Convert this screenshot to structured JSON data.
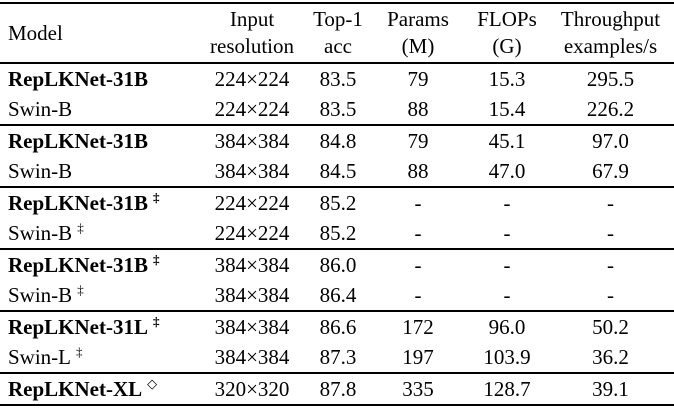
{
  "page": {
    "background": "#ffffff",
    "text_color": "#000000",
    "rule_color": "#000000"
  },
  "table": {
    "columns": [
      {
        "id": "model",
        "line1": "Model",
        "line2": ""
      },
      {
        "id": "resolution",
        "line1": "Input",
        "line2": "resolution"
      },
      {
        "id": "top1",
        "line1": "Top-1",
        "line2": "acc"
      },
      {
        "id": "params",
        "line1": "Params",
        "line2": "(M)"
      },
      {
        "id": "flops",
        "line1": "FLOPs",
        "line2": "(G)"
      },
      {
        "id": "throughput",
        "line1": "Throughput",
        "line2": "examples/s"
      }
    ],
    "rows": [
      {
        "model": "RepLKNet-31B",
        "sup": "",
        "bold": true,
        "resolution": "224×224",
        "top1": "83.5",
        "params": "79",
        "flops": "15.3",
        "throughput": "295.5",
        "group_start": false
      },
      {
        "model": "Swin-B",
        "sup": "",
        "bold": false,
        "resolution": "224×224",
        "top1": "83.5",
        "params": "88",
        "flops": "15.4",
        "throughput": "226.2",
        "group_start": false
      },
      {
        "model": "RepLKNet-31B",
        "sup": "",
        "bold": true,
        "resolution": "384×384",
        "top1": "84.8",
        "params": "79",
        "flops": "45.1",
        "throughput": "97.0",
        "group_start": true
      },
      {
        "model": "Swin-B",
        "sup": "",
        "bold": false,
        "resolution": "384×384",
        "top1": "84.5",
        "params": "88",
        "flops": "47.0",
        "throughput": "67.9",
        "group_start": false
      },
      {
        "model": "RepLKNet-31B",
        "sup": "‡",
        "bold": true,
        "resolution": "224×224",
        "top1": "85.2",
        "params": "-",
        "flops": "-",
        "throughput": "-",
        "group_start": true
      },
      {
        "model": "Swin-B",
        "sup": "‡",
        "bold": false,
        "resolution": "224×224",
        "top1": "85.2",
        "params": "-",
        "flops": "-",
        "throughput": "-",
        "group_start": false
      },
      {
        "model": "RepLKNet-31B",
        "sup": "‡",
        "bold": true,
        "resolution": "384×384",
        "top1": "86.0",
        "params": "-",
        "flops": "-",
        "throughput": "-",
        "group_start": true
      },
      {
        "model": "Swin-B",
        "sup": "‡",
        "bold": false,
        "resolution": "384×384",
        "top1": "86.4",
        "params": "-",
        "flops": "-",
        "throughput": "-",
        "group_start": false
      },
      {
        "model": "RepLKNet-31L",
        "sup": "‡",
        "bold": true,
        "resolution": "384×384",
        "top1": "86.6",
        "params": "172",
        "flops": "96.0",
        "throughput": "50.2",
        "group_start": true
      },
      {
        "model": "Swin-L",
        "sup": "‡",
        "bold": false,
        "resolution": "384×384",
        "top1": "87.3",
        "params": "197",
        "flops": "103.9",
        "throughput": "36.2",
        "group_start": false
      },
      {
        "model": "RepLKNet-XL",
        "sup": "◇",
        "bold": true,
        "resolution": "320×320",
        "top1": "87.8",
        "params": "335",
        "flops": "128.7",
        "throughput": "39.1",
        "group_start": true
      }
    ]
  }
}
